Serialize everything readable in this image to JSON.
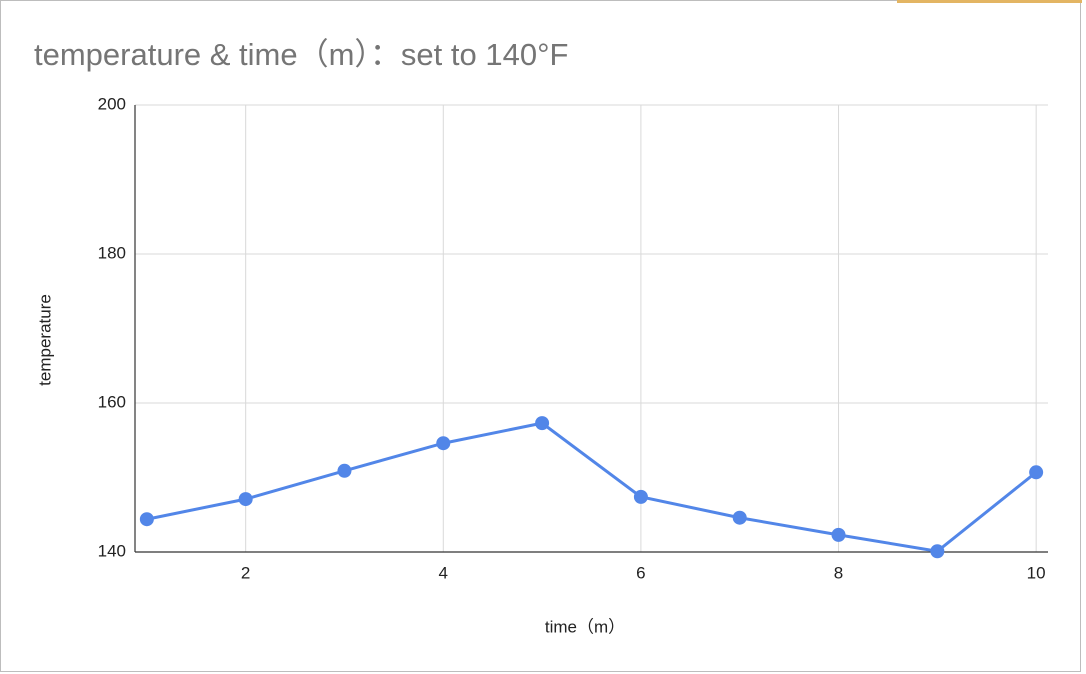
{
  "chart_data": {
    "type": "line",
    "title": "temperature & time（m）：set to 140°F",
    "x_label": "time（m）",
    "y_label": "temperature",
    "x": [
      1,
      2,
      3,
      4,
      5,
      6,
      7,
      8,
      9,
      10
    ],
    "series": [
      {
        "name": "temperature",
        "color": "#5286e8",
        "values": [
          144.4,
          147.1,
          150.9,
          154.6,
          157.3,
          147.4,
          144.6,
          142.3,
          140.1,
          150.7
        ]
      }
    ],
    "xlim": [
      0.88,
      10.12
    ],
    "xticks": [
      2,
      4,
      6,
      8,
      10
    ],
    "ylim": [
      140,
      200
    ],
    "yticks": [
      140,
      160,
      180,
      200
    ],
    "grid": true
  }
}
